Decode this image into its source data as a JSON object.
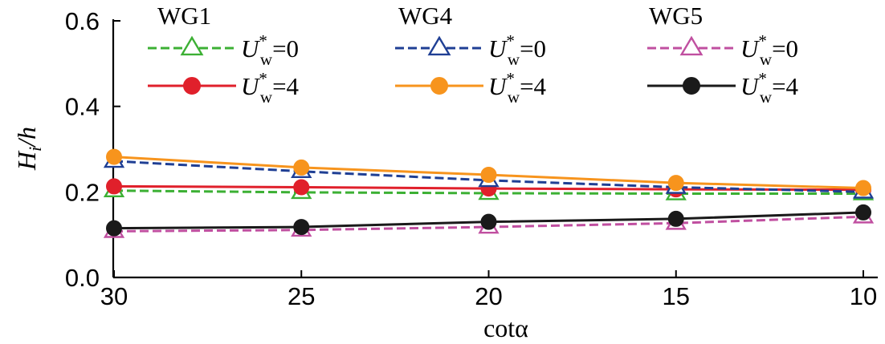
{
  "chart_data": {
    "type": "line",
    "x": [
      30,
      25,
      20,
      15,
      10
    ],
    "xlabel": "cotα",
    "ylabel": "H_i/h",
    "xlim": [
      30,
      10
    ],
    "ylim": [
      0,
      0.6
    ],
    "x_ticks": [
      "30",
      "25",
      "20",
      "15",
      "10"
    ],
    "y_ticks": [
      "0.0",
      "0.2",
      "0.4",
      "0.6"
    ],
    "grid": false,
    "legend": {
      "placement": "top",
      "groups": [
        "WG1",
        "WG4",
        "WG5"
      ],
      "label_u0": "U*w=0",
      "label_u4": "U*w=4"
    },
    "series": [
      {
        "name": "WG1 U*w=0",
        "group": "WG1",
        "case": "U*w=0",
        "color": "#3cb034",
        "dash": true,
        "marker": "triangle",
        "values": [
          0.203,
          0.199,
          0.197,
          0.196,
          0.196
        ]
      },
      {
        "name": "WG1 U*w=4",
        "group": "WG1",
        "case": "U*w=4",
        "color": "#e0202b",
        "dash": false,
        "marker": "circle",
        "values": [
          0.213,
          0.211,
          0.208,
          0.206,
          0.205
        ]
      },
      {
        "name": "WG4 U*w=0",
        "group": "WG4",
        "case": "U*w=0",
        "color": "#1f3f94",
        "dash": true,
        "marker": "triangle",
        "values": [
          0.272,
          0.248,
          0.227,
          0.211,
          0.2
        ]
      },
      {
        "name": "WG4 U*w=4",
        "group": "WG4",
        "case": "U*w=4",
        "color": "#f7941d",
        "dash": false,
        "marker": "circle",
        "values": [
          0.282,
          0.257,
          0.24,
          0.221,
          0.209
        ]
      },
      {
        "name": "WG5 U*w=0",
        "group": "WG5",
        "case": "U*w=0",
        "color": "#c04fa0",
        "dash": true,
        "marker": "triangle",
        "values": [
          0.108,
          0.111,
          0.118,
          0.127,
          0.142
        ]
      },
      {
        "name": "WG5 U*w=4",
        "group": "WG5",
        "case": "U*w=4",
        "color": "#1a1a1a",
        "dash": false,
        "marker": "circle",
        "values": [
          0.115,
          0.118,
          0.13,
          0.137,
          0.152
        ]
      }
    ]
  }
}
